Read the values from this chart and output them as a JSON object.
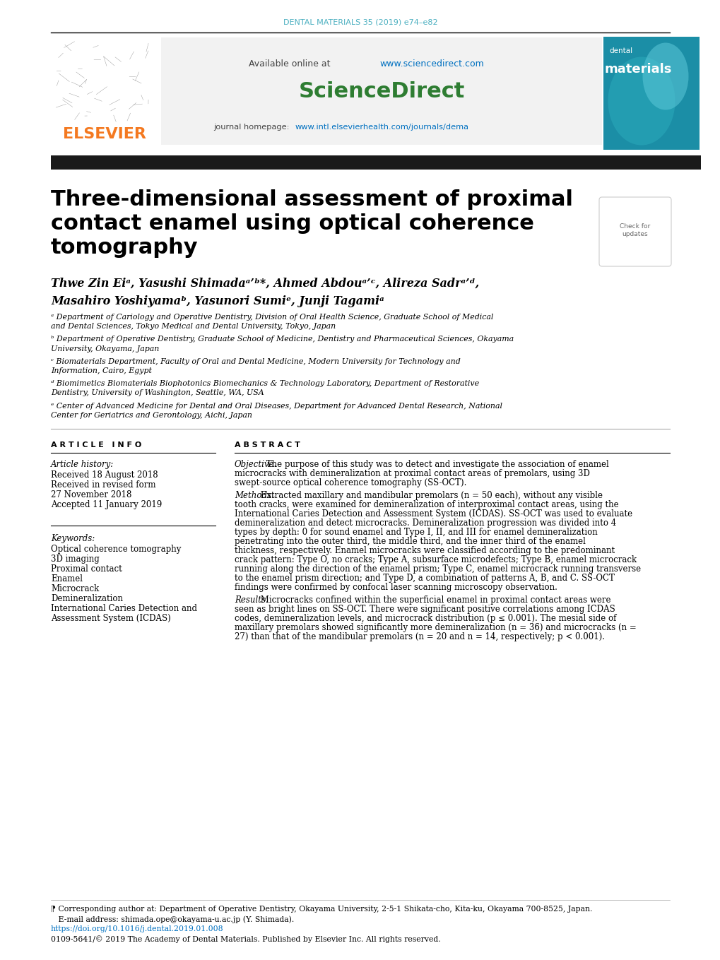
{
  "journal_header": "DENTAL MATERIALS 35 (2019) e74–e82",
  "available_online_text": "Available online at ",
  "sciencedirect_url": "www.sciencedirect.com",
  "journal_homepage_label": "journal homepage: ",
  "journal_homepage_url": "www.intl.elsevierhealth.com/journals/dema",
  "title_line1": "Three-dimensional assessment of proximal",
  "title_line2": "contact enamel using optical coherence",
  "title_line3": "tomography",
  "author_line1": "Thwe Zin Eiᵃ, Yasushi Shimadaᵃ’ᵇ*, Ahmed Abdouᵃ’ᶜ, Alireza Sadrᵃ’ᵈ,",
  "author_line2": "Masahiro Yoshiyamaᵇ, Yasunori Sumiᵉ, Junji Tagamiᵃ",
  "affil_a": "ᵃ Department of Cariology and Operative Dentistry, Division of Oral Health Science, Graduate School of Medical and Dental Sciences, Tokyo Medical and Dental University, Tokyo, Japan",
  "affil_b": "ᵇ Department of Operative Dentistry, Graduate School of Medicine, Dentistry and Pharmaceutical Sciences, Okayama University, Okayama, Japan",
  "affil_c": "ᶜ Biomaterials Department, Faculty of Oral and Dental Medicine, Modern University for Technology and Information, Cairo, Egypt",
  "affil_d": "ᵈ Biomimetics Biomaterials Biophotonics Biomechanics & Technology Laboratory, Department of Restorative Dentistry, University of Washington, Seattle, WA, USA",
  "affil_e": "ᵉ Center of Advanced Medicine for Dental and Oral Diseases, Department for Advanced Dental Research, National Center for Geriatrics and Gerontology, Aichi, Japan",
  "article_info_header": "A R T I C L E   I N F O",
  "abstract_header": "A B S T R A C T",
  "article_history_label": "Article history:",
  "received": "Received 18 August 2018",
  "received_revised1": "Received in revised form",
  "received_revised2": "27 November 2018",
  "accepted": "Accepted 11 January 2019",
  "keywords_label": "Keywords:",
  "keyword1": "Optical coherence tomography",
  "keyword2": "3D imaging",
  "keyword3": "Proximal contact",
  "keyword4": "Enamel",
  "keyword5": "Microcrack",
  "keyword6": "Demineralization",
  "keyword7": "International Caries Detection and",
  "keyword8": "Assessment System (ICDAS)",
  "abstract_obj_label": "Objective.",
  "abstract_obj": " The purpose of this study was to detect and investigate the association of enamel microcracks with demineralization at proximal contact areas of premolars, using 3D swept-source optical coherence tomography (SS-OCT).",
  "abstract_meth_label": "Methods.",
  "abstract_meth": " Extracted maxillary and mandibular premolars (n = 50 each), without any visible tooth cracks, were examined for demineralization of interproximal contact areas, using the International Caries Detection and Assessment System (ICDAS). SS-OCT was used to evaluate demineralization and detect microcracks. Demineralization progression was divided into 4 types by depth: 0 for sound enamel and Type I, II, and III for enamel demineralization penetrating into the outer third, the middle third, and the inner third of the enamel thickness, respectively. Enamel microcracks were classified according to the predominant crack pattern: Type O, no cracks; Type A, subsurface microdefects; Type B, enamel microcrack running along the direction of the enamel prism; Type C, enamel microcrack running transverse to the enamel prism direction; and Type D, a combination of patterns A, B, and C. SS-OCT findings were confirmed by confocal laser scanning microscopy observation.",
  "abstract_res_label": "Results.",
  "abstract_res": " Microcracks confined within the superficial enamel in proximal contact areas were seen as bright lines on SS-OCT. There were significant positive correlations among ICDAS codes, demineralization levels, and microcrack distribution (p ≤ 0.001). The mesial side of maxillary premolars showed significantly more demineralization (n = 36) and microcracks (n = 27) than that of the mandibular premolars (n = 20 and n = 14, respectively; p < 0.001).",
  "footnote1": "⁋ Corresponding author at: Department of Operative Dentistry, Okayama University, 2-5-1 Shikata-cho, Kita-ku, Okayama 700-8525, Japan.",
  "footnote2": "   E-mail address: shimada.ope@okayama-u.ac.jp (Y. Shimada).",
  "doi_url": "https://doi.org/10.1016/j.dental.2019.01.008",
  "copyright": "0109-5641/© 2019 The Academy of Dental Materials. Published by Elsevier Inc. All rights reserved.",
  "header_color": "#4aafc0",
  "elsevier_orange": "#F47920",
  "sciencedirect_green": "#2E7D32",
  "url_color": "#0070C0",
  "teal_cover": "#1B8EA6",
  "teal_cover2": "#2BAABB",
  "bg_gray": "#f2f2f2",
  "black_bar": "#1a1a1a"
}
